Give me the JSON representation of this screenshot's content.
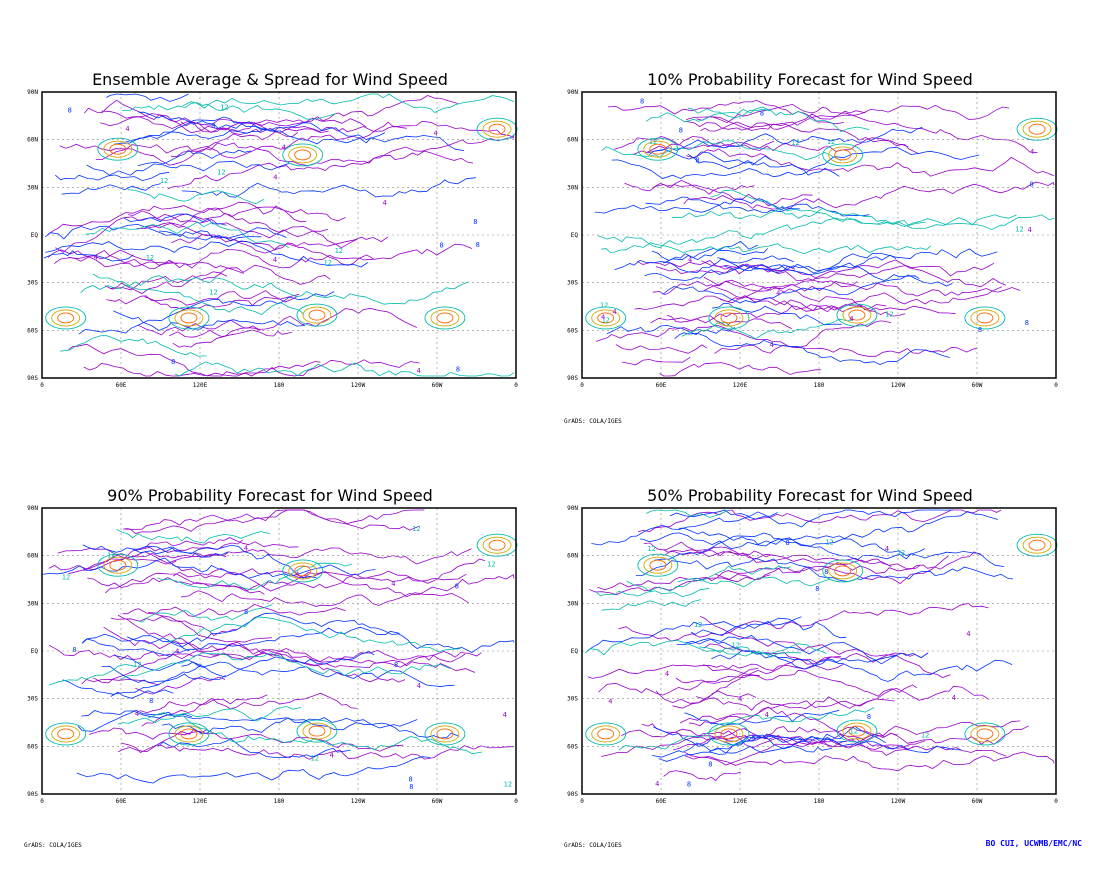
{
  "panels": [
    {
      "title": "Ensemble Average & Spread for Wind Speed",
      "credit": ""
    },
    {
      "title": "10% Probability Forecast for Wind Speed",
      "credit": "GrADS: COLA/IGES"
    },
    {
      "title": "90% Probability Forecast for Wind Speed",
      "credit": "GrADS: COLA/IGES"
    },
    {
      "title": "50% Probability Forecast for Wind Speed",
      "credit": "GrADS: COLA/IGES"
    }
  ],
  "lat_labels": [
    "90N",
    "60N",
    "30N",
    "EQ",
    "30S",
    "60S",
    "90S"
  ],
  "lon_labels": [
    "0",
    "60E",
    "120E",
    "180",
    "120W",
    "60W",
    "0"
  ],
  "contour_labels": [
    "4",
    "8",
    "12"
  ],
  "contour_colors": {
    "4": "#9900cc",
    "8": "#0033ff",
    "12": "#00bbaa",
    "16": "#ccaa00",
    "20": "#ff6600",
    "24": "#ff0000"
  },
  "footer": "BO CUI, UCWMB/EMC/NC"
}
